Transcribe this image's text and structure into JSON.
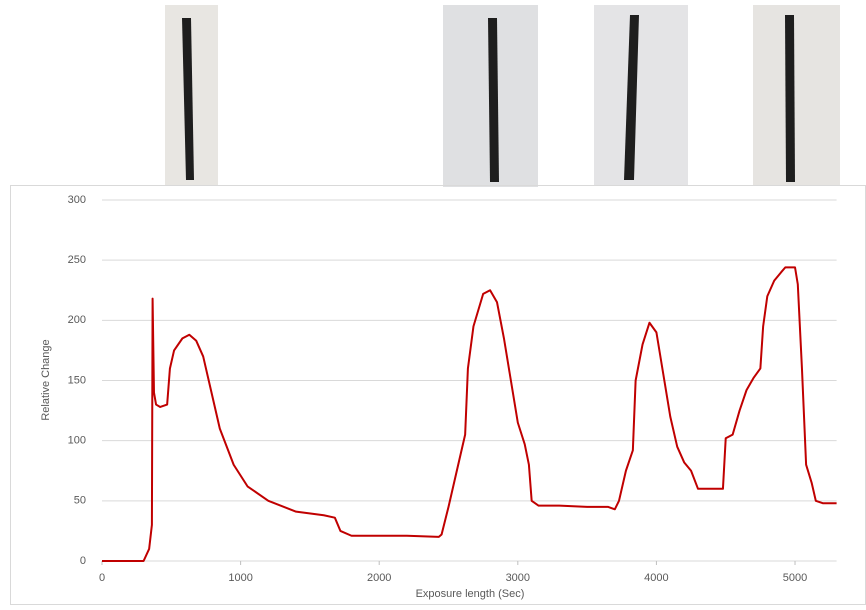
{
  "chart_data": {
    "type": "line",
    "x_label": "Exposure length (Sec)",
    "y_label": "Relative Change",
    "xlim": [
      0,
      5300
    ],
    "xticks": [
      0,
      1000,
      2000,
      3000,
      4000,
      5000
    ],
    "ylim": [
      0,
      300
    ],
    "yticks": [
      0,
      50,
      100,
      150,
      200,
      250,
      300
    ],
    "grid": true,
    "series": [
      {
        "color": "#c00000",
        "x": [
          0,
          300,
          340,
          360,
          365,
          375,
          390,
          420,
          470,
          490,
          520,
          580,
          630,
          680,
          730,
          780,
          850,
          950,
          1050,
          1200,
          1400,
          1600,
          1680,
          1720,
          1800,
          2000,
          2200,
          2430,
          2450,
          2500,
          2550,
          2620,
          2640,
          2680,
          2750,
          2800,
          2850,
          2900,
          2950,
          3000,
          3050,
          3080,
          3100,
          3150,
          3300,
          3500,
          3650,
          3700,
          3730,
          3780,
          3830,
          3850,
          3900,
          3950,
          4000,
          4050,
          4100,
          4150,
          4200,
          4250,
          4300,
          4480,
          4500,
          4550,
          4600,
          4650,
          4700,
          4750,
          4770,
          4800,
          4850,
          4900,
          4930,
          5000,
          5020,
          5050,
          5080,
          5120,
          5150,
          5200,
          5300
        ],
        "values": [
          0,
          0,
          10,
          30,
          218,
          140,
          130,
          128,
          130,
          160,
          175,
          185,
          188,
          183,
          170,
          145,
          110,
          80,
          62,
          50,
          41,
          38,
          36,
          25,
          21,
          21,
          21,
          20,
          22,
          45,
          70,
          105,
          160,
          195,
          222,
          225,
          215,
          185,
          150,
          115,
          97,
          80,
          50,
          46,
          46,
          45,
          45,
          43,
          50,
          75,
          92,
          150,
          180,
          198,
          190,
          155,
          120,
          95,
          82,
          75,
          60,
          60,
          102,
          105,
          125,
          142,
          152,
          160,
          195,
          220,
          233,
          240,
          244,
          244,
          230,
          160,
          80,
          65,
          50,
          48,
          48
        ]
      }
    ]
  }
}
